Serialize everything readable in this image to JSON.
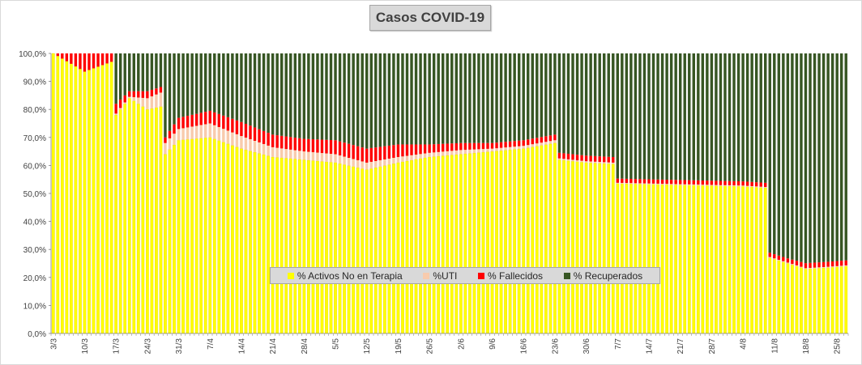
{
  "chart_data": {
    "type": "bar",
    "stacked": true,
    "percent": true,
    "title": "Casos  COVID-19",
    "xlabel": "",
    "ylabel": "",
    "ylim": [
      0,
      100
    ],
    "y_ticks": [
      "0,0%",
      "10,0%",
      "20,0%",
      "30,0%",
      "40,0%",
      "50,0%",
      "60,0%",
      "70,0%",
      "80,0%",
      "90,0%",
      "100,0%"
    ],
    "x_tick_labels": [
      "3/3",
      "10/3",
      "17/3",
      "24/3",
      "31/3",
      "7/4",
      "14/4",
      "21/4",
      "28/4",
      "5/5",
      "12/5",
      "19/5",
      "26/5",
      "2/6",
      "9/6",
      "16/6",
      "23/6",
      "30/6",
      "7/7",
      "14/7",
      "21/7",
      "28/7",
      "4/8",
      "11/8",
      "18/8",
      "25/8"
    ],
    "grid": false,
    "legend_position": "inside-bottom-center",
    "series": [
      {
        "name": "% Activos No en Terapia",
        "color": "#FFFF00"
      },
      {
        "name": "%UTI",
        "color": "#F8CBAD"
      },
      {
        "name": "% Fallecidos",
        "color": "#FF0000"
      },
      {
        "name": "% Recuperados",
        "color": "#375623"
      }
    ],
    "daily_points": [
      {
        "day": 0,
        "activos": 100,
        "uti": 0,
        "fallecidos": 0
      },
      {
        "day": 7,
        "activos": 93.5,
        "uti": 0,
        "fallecidos": 6.5
      },
      {
        "day": 13,
        "activos": 97,
        "uti": 0,
        "fallecidos": 3
      },
      {
        "day": 14,
        "activos": 78,
        "uti": 0.5,
        "fallecidos": 3.5
      },
      {
        "day": 17,
        "activos": 84,
        "uti": 0.5,
        "fallecidos": 2
      },
      {
        "day": 21,
        "activos": 80,
        "uti": 4,
        "fallecidos": 2.5
      },
      {
        "day": 24,
        "activos": 81,
        "uti": 5,
        "fallecidos": 2
      },
      {
        "day": 25,
        "activos": 64,
        "uti": 4,
        "fallecidos": 2
      },
      {
        "day": 28,
        "activos": 69,
        "uti": 4,
        "fallecidos": 4
      },
      {
        "day": 35,
        "activos": 70,
        "uti": 5,
        "fallecidos": 4.5
      },
      {
        "day": 42,
        "activos": 66,
        "uti": 4.5,
        "fallecidos": 5
      },
      {
        "day": 49,
        "activos": 63,
        "uti": 3.5,
        "fallecidos": 4.5
      },
      {
        "day": 56,
        "activos": 62,
        "uti": 3,
        "fallecidos": 4.5
      },
      {
        "day": 63,
        "activos": 61,
        "uti": 3,
        "fallecidos": 5
      },
      {
        "day": 70,
        "activos": 58.5,
        "uti": 2.5,
        "fallecidos": 5
      },
      {
        "day": 77,
        "activos": 61,
        "uti": 2,
        "fallecidos": 4.5
      },
      {
        "day": 84,
        "activos": 63,
        "uti": 1.5,
        "fallecidos": 3
      },
      {
        "day": 91,
        "activos": 64,
        "uti": 1.5,
        "fallecidos": 2.5
      },
      {
        "day": 98,
        "activos": 65,
        "uti": 1,
        "fallecidos": 2
      },
      {
        "day": 105,
        "activos": 66,
        "uti": 1,
        "fallecidos": 2
      },
      {
        "day": 112,
        "activos": 68,
        "uti": 1,
        "fallecidos": 2
      },
      {
        "day": 113,
        "activos": 62,
        "uti": 0.5,
        "fallecidos": 2
      },
      {
        "day": 119,
        "activos": 61,
        "uti": 0.5,
        "fallecidos": 2
      },
      {
        "day": 125,
        "activos": 60.5,
        "uti": 0.5,
        "fallecidos": 2
      },
      {
        "day": 126,
        "activos": 53.5,
        "uti": 0.3,
        "fallecidos": 1.5
      },
      {
        "day": 140,
        "activos": 53,
        "uti": 0.3,
        "fallecidos": 1.5
      },
      {
        "day": 154,
        "activos": 52.5,
        "uti": 0.3,
        "fallecidos": 1.5
      },
      {
        "day": 159,
        "activos": 52,
        "uti": 0.3,
        "fallecidos": 1.5
      },
      {
        "day": 160,
        "activos": 27,
        "uti": 0.3,
        "fallecidos": 1.5
      },
      {
        "day": 164,
        "activos": 25,
        "uti": 0.3,
        "fallecidos": 1.5
      },
      {
        "day": 168,
        "activos": 23,
        "uti": 0.3,
        "fallecidos": 1.8
      },
      {
        "day": 173,
        "activos": 23.5,
        "uti": 0.3,
        "fallecidos": 1.8
      },
      {
        "day": 177,
        "activos": 24,
        "uti": 0.3,
        "fallecidos": 1.8
      }
    ]
  }
}
